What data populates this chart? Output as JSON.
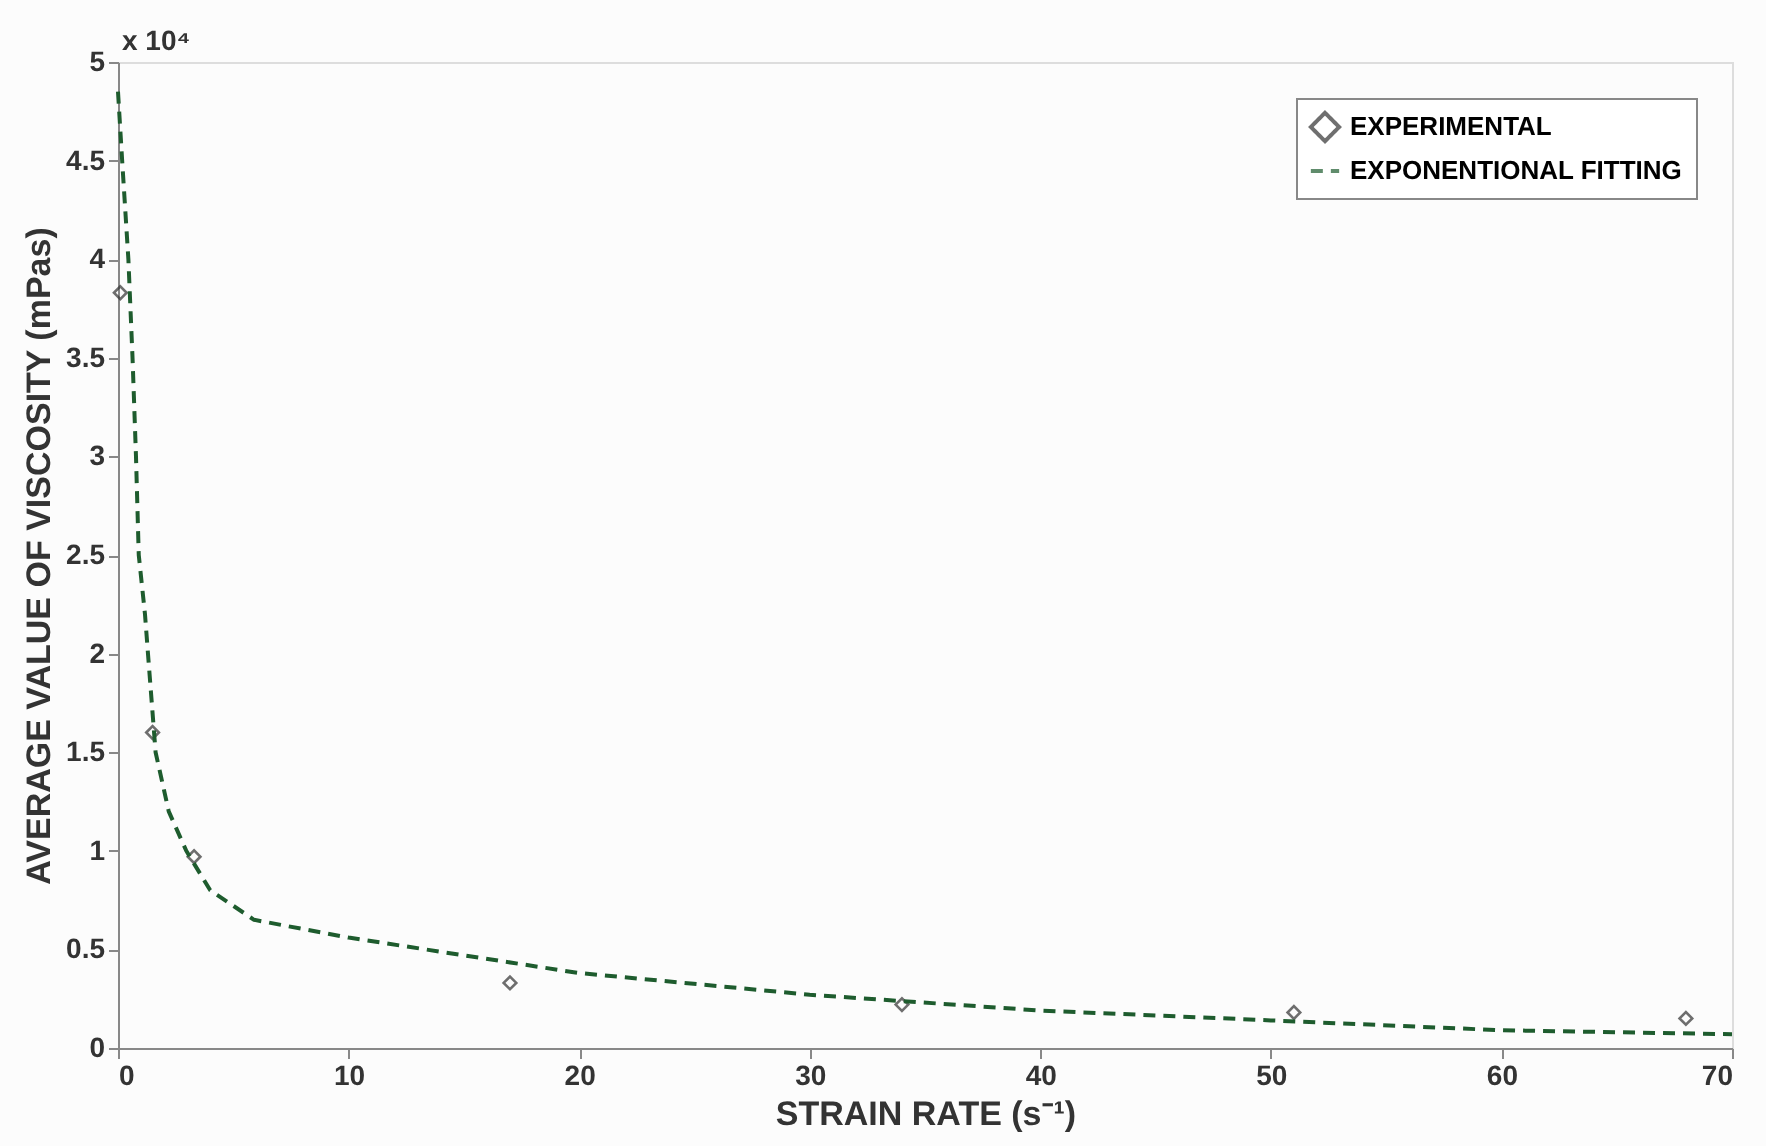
{
  "chart_data": {
    "type": "scatter",
    "xlabel": "STRAIN RATE (s⁻¹)",
    "ylabel": "AVERAGE VALUE OF VISCOSITY (mPas)",
    "annotations": [
      "x 10⁴"
    ],
    "xlim": [
      0,
      70
    ],
    "xticks": [
      0,
      10,
      20,
      30,
      40,
      50,
      60,
      70
    ],
    "ylim": [
      0,
      5
    ],
    "yticks": [
      0,
      0.5,
      1,
      1.5,
      2,
      2.5,
      3,
      3.5,
      4,
      4.5,
      5
    ],
    "grid": false,
    "legend": "top right",
    "series": [
      {
        "name": "EXPERIMENTAL",
        "marker": "diamond",
        "color": "#333333",
        "x": [
          0.1,
          1.5,
          3.3,
          17,
          34,
          51,
          68
        ],
        "values": [
          3.83,
          1.6,
          0.97,
          0.33,
          0.22,
          0.18,
          0.15
        ]
      },
      {
        "name": "EXPONENTIONAL FITTING",
        "type": "line",
        "line_style": "dashed",
        "color": "#1e5c2e",
        "x": [
          0,
          0.18,
          0.45,
          0.63,
          0.78,
          0.9,
          1.17,
          1.3,
          1.63,
          2.2,
          2.96,
          4.0,
          5.9,
          10,
          20,
          30,
          40,
          50,
          60,
          70
        ],
        "values": [
          4.85,
          4.5,
          4,
          3.5,
          3,
          2.5,
          2.2,
          2,
          1.5,
          1.2,
          1,
          0.8,
          0.65,
          0.56,
          0.38,
          0.27,
          0.19,
          0.14,
          0.09,
          0.07
        ]
      }
    ]
  }
}
